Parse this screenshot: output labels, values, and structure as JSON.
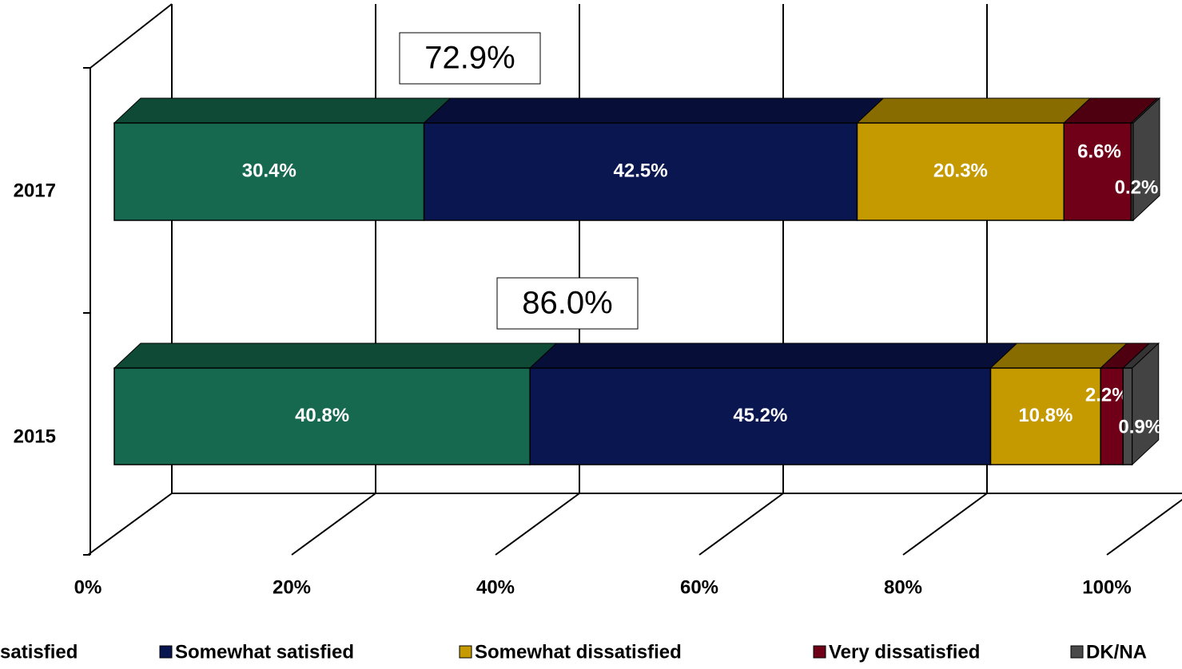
{
  "chart_data": {
    "type": "bar3d-stacked-horizontal",
    "categories": [
      "2017",
      "2015"
    ],
    "series": [
      {
        "name": "satisfied",
        "color": "#16694f",
        "values": [
          30.4,
          40.8
        ],
        "value_labels": [
          "30.4%",
          "40.8%"
        ]
      },
      {
        "name": "Somewhat satisfied",
        "color": "#0a1650",
        "values": [
          42.5,
          45.2
        ],
        "value_labels": [
          "42.5%",
          "45.2%"
        ]
      },
      {
        "name": "Somewhat dissatisfied",
        "color": "#c49a00",
        "values": [
          20.3,
          10.8
        ],
        "value_labels": [
          "20.3%",
          "10.8%"
        ]
      },
      {
        "name": "Very dissatisfied",
        "color": "#6f0018",
        "values": [
          6.6,
          2.2
        ],
        "value_labels": [
          "6.6%",
          "2.2%"
        ]
      },
      {
        "name": "DK/NA",
        "color": "#4a4a4a",
        "values": [
          0.2,
          0.9
        ],
        "value_labels": [
          "0.2%",
          "0.9%"
        ]
      }
    ],
    "annotations": [
      "72.9%",
      "86.0%"
    ],
    "xlim": [
      0,
      100
    ],
    "xticks": [
      {
        "value": 0,
        "label": "0%"
      },
      {
        "value": 20,
        "label": "20%"
      },
      {
        "value": 40,
        "label": "40%"
      },
      {
        "value": 60,
        "label": "60%"
      },
      {
        "value": 80,
        "label": "80%"
      },
      {
        "value": 100,
        "label": "100%"
      }
    ],
    "grid": true
  }
}
